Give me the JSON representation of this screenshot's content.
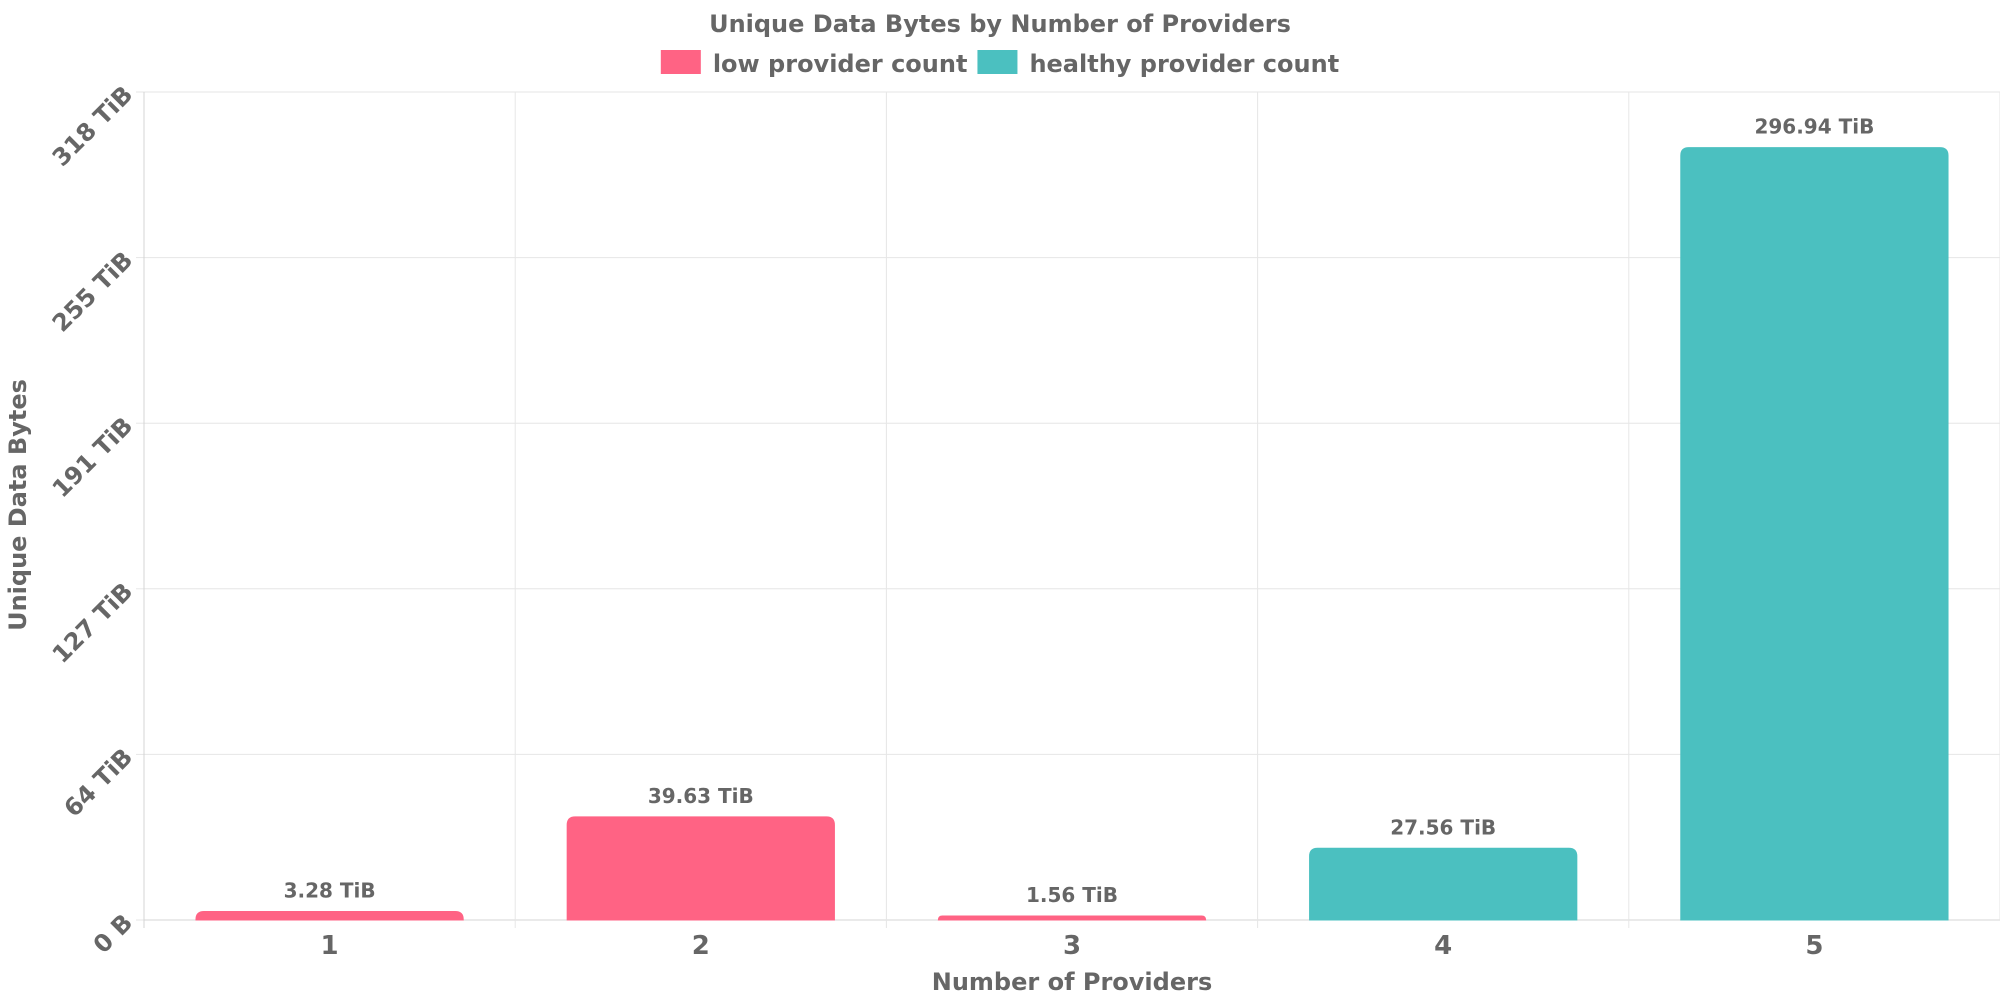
{
  "chart_data": {
    "type": "bar",
    "title": "Unique Data Bytes by Number of Providers",
    "xlabel": "Number of Providers",
    "ylabel": "Unique Data Bytes",
    "categories": [
      "1",
      "2",
      "3",
      "4",
      "5"
    ],
    "series": [
      {
        "name": "low provider count",
        "color": "#ff6384",
        "values": [
          3.28,
          39.63,
          1.56,
          null,
          null
        ]
      },
      {
        "name": "healthy provider count",
        "color": "#4bc0c0",
        "values": [
          null,
          null,
          null,
          27.56,
          296.94
        ]
      }
    ],
    "value_unit": "TiB",
    "value_labels": [
      "3.28 TiB",
      "39.63 TiB",
      "1.56 TiB",
      "27.56 TiB",
      "296.94 TiB"
    ],
    "y_ticks": [
      {
        "value": 0,
        "label": "0 B"
      },
      {
        "value": 63.66,
        "label": "64 TiB"
      },
      {
        "value": 127.33,
        "label": "127 TiB"
      },
      {
        "value": 190.99,
        "label": "191 TiB"
      },
      {
        "value": 254.66,
        "label": "255 TiB"
      },
      {
        "value": 318.32,
        "label": "318 TiB"
      }
    ],
    "ylim": [
      0,
      318.32
    ],
    "grid": true,
    "legend_position": "top"
  }
}
